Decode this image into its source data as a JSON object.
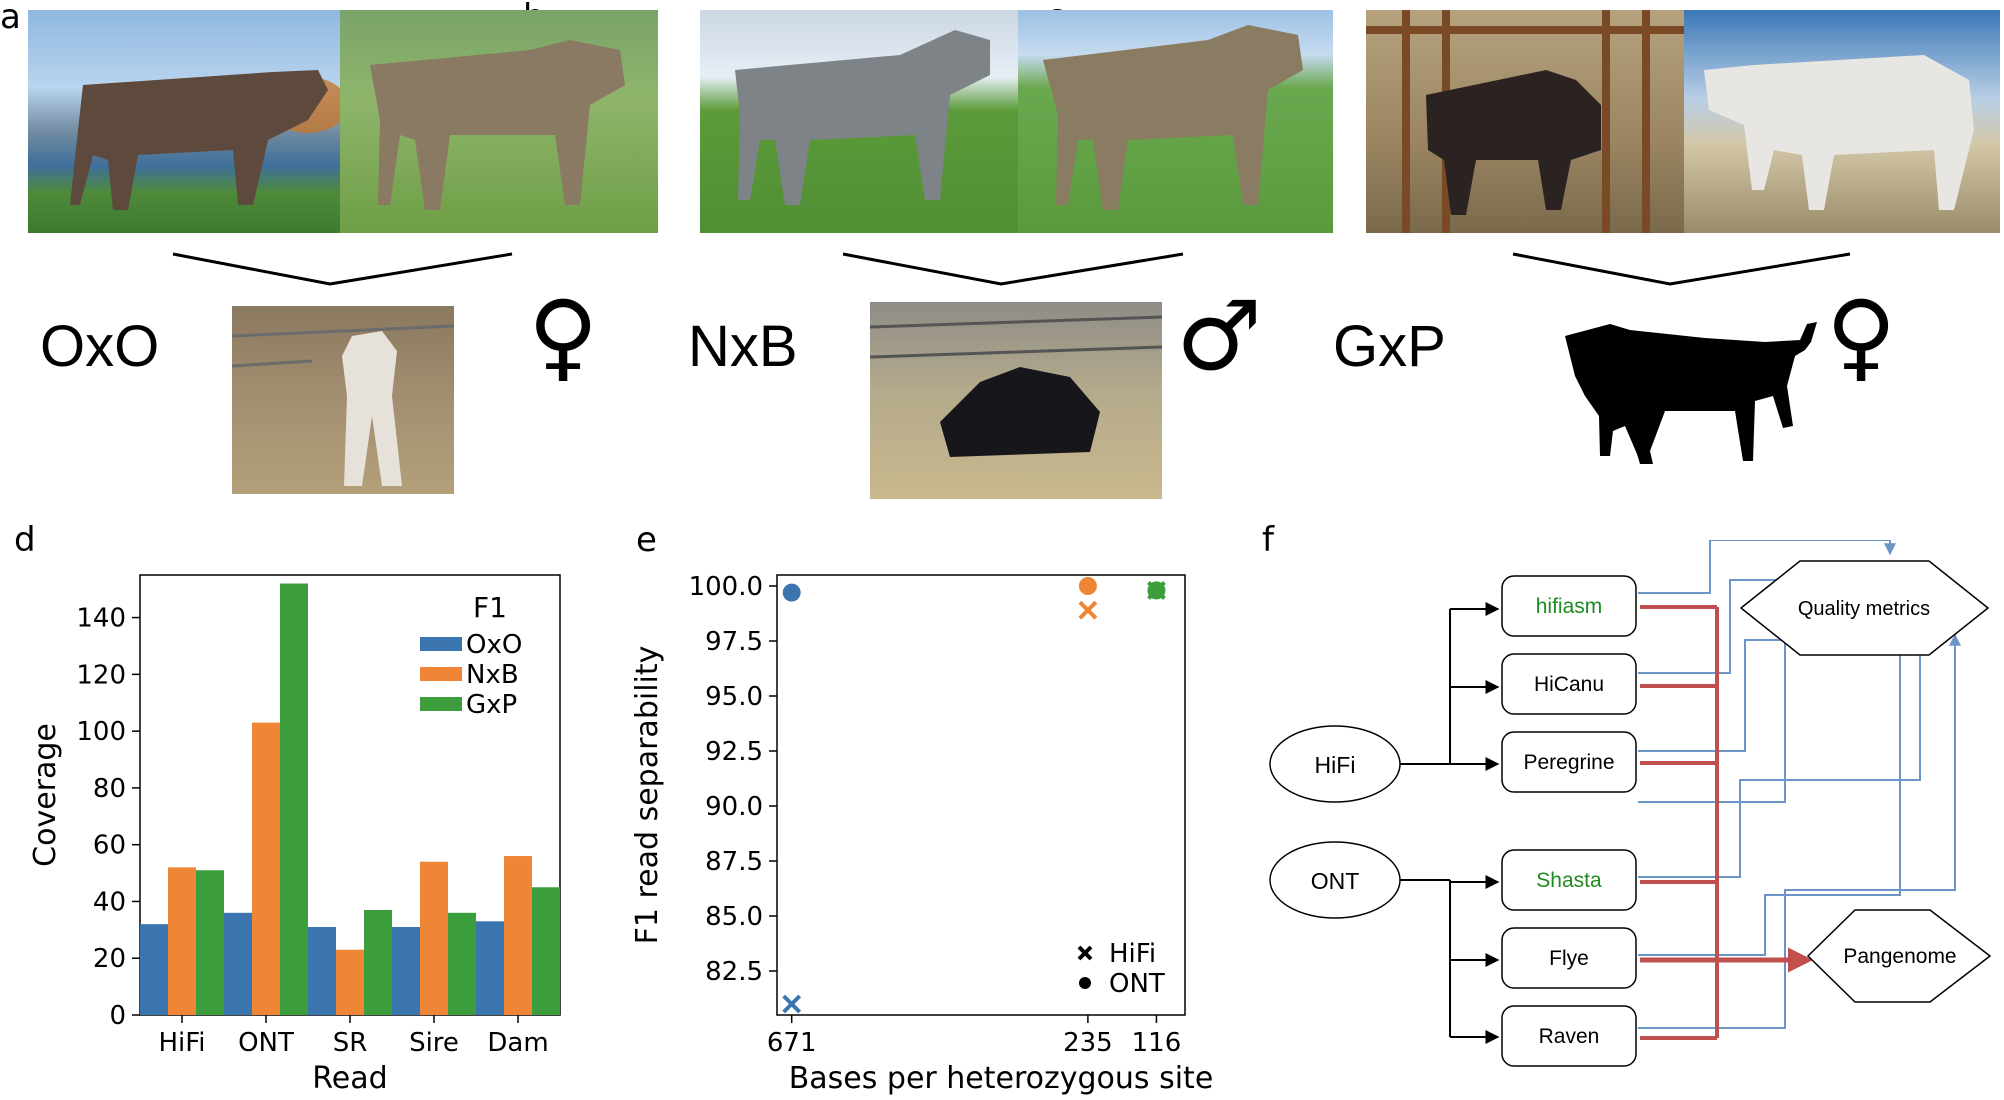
{
  "panels": {
    "a": {
      "letter": "a",
      "cross": "OxO",
      "sex_symbol": "♀"
    },
    "b": {
      "letter": "b",
      "cross": "NxB",
      "sex_symbol": "♂"
    },
    "c": {
      "letter": "c",
      "cross": "GxP",
      "sex_symbol": "♀"
    },
    "d": {
      "letter": "d"
    },
    "e": {
      "letter": "e"
    },
    "f": {
      "letter": "f"
    }
  },
  "chart_data": [
    {
      "panel": "d",
      "type": "bar",
      "xlabel": "Read",
      "ylabel": "Coverage",
      "categories": [
        "HiFi",
        "ONT",
        "SR",
        "Sire",
        "Dam"
      ],
      "ylim": [
        0,
        155
      ],
      "yticks": [
        0,
        20,
        40,
        60,
        80,
        100,
        120,
        140
      ],
      "legend": {
        "title": "F1",
        "placement": "top-right"
      },
      "series": [
        {
          "name": "OxO",
          "color": "#3b75af",
          "values": [
            32,
            36,
            31,
            31,
            33
          ]
        },
        {
          "name": "NxB",
          "color": "#ef8636",
          "values": [
            52,
            103,
            23,
            54,
            56
          ]
        },
        {
          "name": "GxP",
          "color": "#3c9d3c",
          "values": [
            51,
            152,
            37,
            36,
            45
          ]
        }
      ]
    },
    {
      "panel": "e",
      "type": "scatter",
      "xlabel": "Bases per heterozygous site",
      "ylabel": "F1 read separability",
      "xtick_labels": [
        "671",
        "235",
        "116"
      ],
      "ylim": [
        80.5,
        100.5
      ],
      "yticks": [
        82.5,
        85.0,
        87.5,
        90.0,
        92.5,
        95.0,
        97.5,
        100.0
      ],
      "ytick_labels": [
        "82.5",
        "85.0",
        "87.5",
        "90.0",
        "92.5",
        "95.0",
        "97.5",
        "100.0"
      ],
      "legend": {
        "placement": "bottom-right",
        "entries": [
          {
            "marker": "x",
            "label": "HiFi"
          },
          {
            "marker": "o",
            "label": "ONT"
          }
        ]
      },
      "points": [
        {
          "x": "671",
          "tech": "HiFi",
          "y": 81.0,
          "color": "#3b75af"
        },
        {
          "x": "671",
          "tech": "ONT",
          "y": 99.7,
          "color": "#3b75af"
        },
        {
          "x": "235",
          "tech": "HiFi",
          "y": 98.9,
          "color": "#ef8636"
        },
        {
          "x": "235",
          "tech": "ONT",
          "y": 100.0,
          "color": "#ef8636"
        },
        {
          "x": "116",
          "tech": "HiFi",
          "y": 99.8,
          "color": "#3c9d3c"
        },
        {
          "x": "116",
          "tech": "ONT",
          "y": 99.8,
          "color": "#3c9d3c"
        }
      ]
    }
  ],
  "flow": {
    "inputs": [
      "HiFi",
      "ONT"
    ],
    "hifi_assemblers": [
      "hifiasm",
      "HiCanu",
      "Peregrine"
    ],
    "ont_assemblers": [
      "Shasta",
      "Flye",
      "Raven"
    ],
    "highlighted": [
      "hifiasm",
      "Shasta"
    ],
    "quality_metrics": "Quality metrics",
    "pangenome": "Pangenome",
    "colors": {
      "highlight_text": "#1f8a1f",
      "metric_arrow": "#6c95c7",
      "pangenome_arrow": "#c0504d"
    }
  }
}
